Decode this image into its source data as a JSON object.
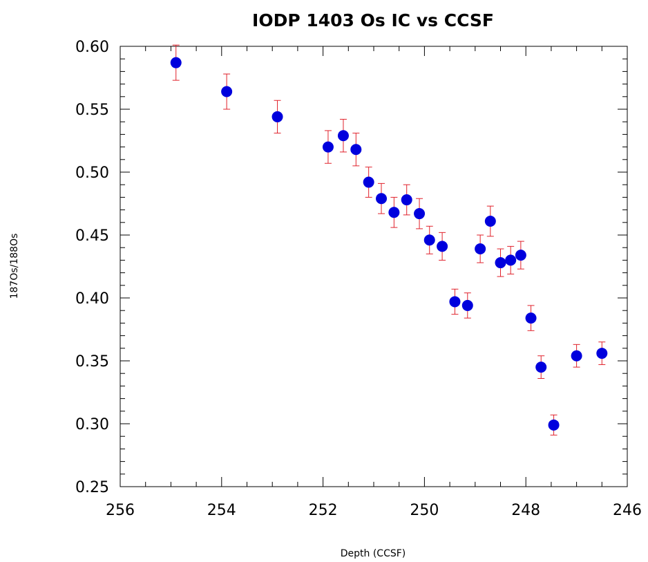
{
  "chart_data": {
    "type": "scatter",
    "title": "IODP 1403 Os IC vs CCSF",
    "xlabel": "Depth (CCSF)",
    "ylabel": "187Os/188Os",
    "xlim": [
      256,
      246
    ],
    "ylim": [
      0.25,
      0.6
    ],
    "x_ticks": [
      "256",
      "254",
      "252",
      "250",
      "248",
      "246"
    ],
    "y_ticks": [
      "0.25",
      "0.30",
      "0.35",
      "0.40",
      "0.45",
      "0.50",
      "0.55",
      "0.60"
    ],
    "colors": {
      "marker": "#0000dd",
      "error_bar": "#e0202a",
      "axes": "#000000"
    },
    "series": [
      {
        "points": [
          {
            "x": 254.9,
            "y": 0.587,
            "err": 0.014
          },
          {
            "x": 253.9,
            "y": 0.564,
            "err": 0.014
          },
          {
            "x": 252.9,
            "y": 0.544,
            "err": 0.013
          },
          {
            "x": 251.9,
            "y": 0.52,
            "err": 0.013
          },
          {
            "x": 251.6,
            "y": 0.529,
            "err": 0.013
          },
          {
            "x": 251.35,
            "y": 0.518,
            "err": 0.013
          },
          {
            "x": 251.1,
            "y": 0.492,
            "err": 0.012
          },
          {
            "x": 250.85,
            "y": 0.479,
            "err": 0.012
          },
          {
            "x": 250.6,
            "y": 0.468,
            "err": 0.012
          },
          {
            "x": 250.35,
            "y": 0.478,
            "err": 0.012
          },
          {
            "x": 250.1,
            "y": 0.467,
            "err": 0.012
          },
          {
            "x": 249.9,
            "y": 0.446,
            "err": 0.011
          },
          {
            "x": 249.65,
            "y": 0.441,
            "err": 0.011
          },
          {
            "x": 249.4,
            "y": 0.397,
            "err": 0.01
          },
          {
            "x": 249.15,
            "y": 0.394,
            "err": 0.01
          },
          {
            "x": 248.9,
            "y": 0.439,
            "err": 0.011
          },
          {
            "x": 248.7,
            "y": 0.461,
            "err": 0.012
          },
          {
            "x": 248.5,
            "y": 0.428,
            "err": 0.011
          },
          {
            "x": 248.3,
            "y": 0.43,
            "err": 0.011
          },
          {
            "x": 248.1,
            "y": 0.434,
            "err": 0.011
          },
          {
            "x": 247.9,
            "y": 0.384,
            "err": 0.01
          },
          {
            "x": 247.7,
            "y": 0.345,
            "err": 0.009
          },
          {
            "x": 247.45,
            "y": 0.299,
            "err": 0.008
          },
          {
            "x": 247.0,
            "y": 0.354,
            "err": 0.009
          },
          {
            "x": 246.5,
            "y": 0.356,
            "err": 0.009
          }
        ]
      }
    ]
  }
}
